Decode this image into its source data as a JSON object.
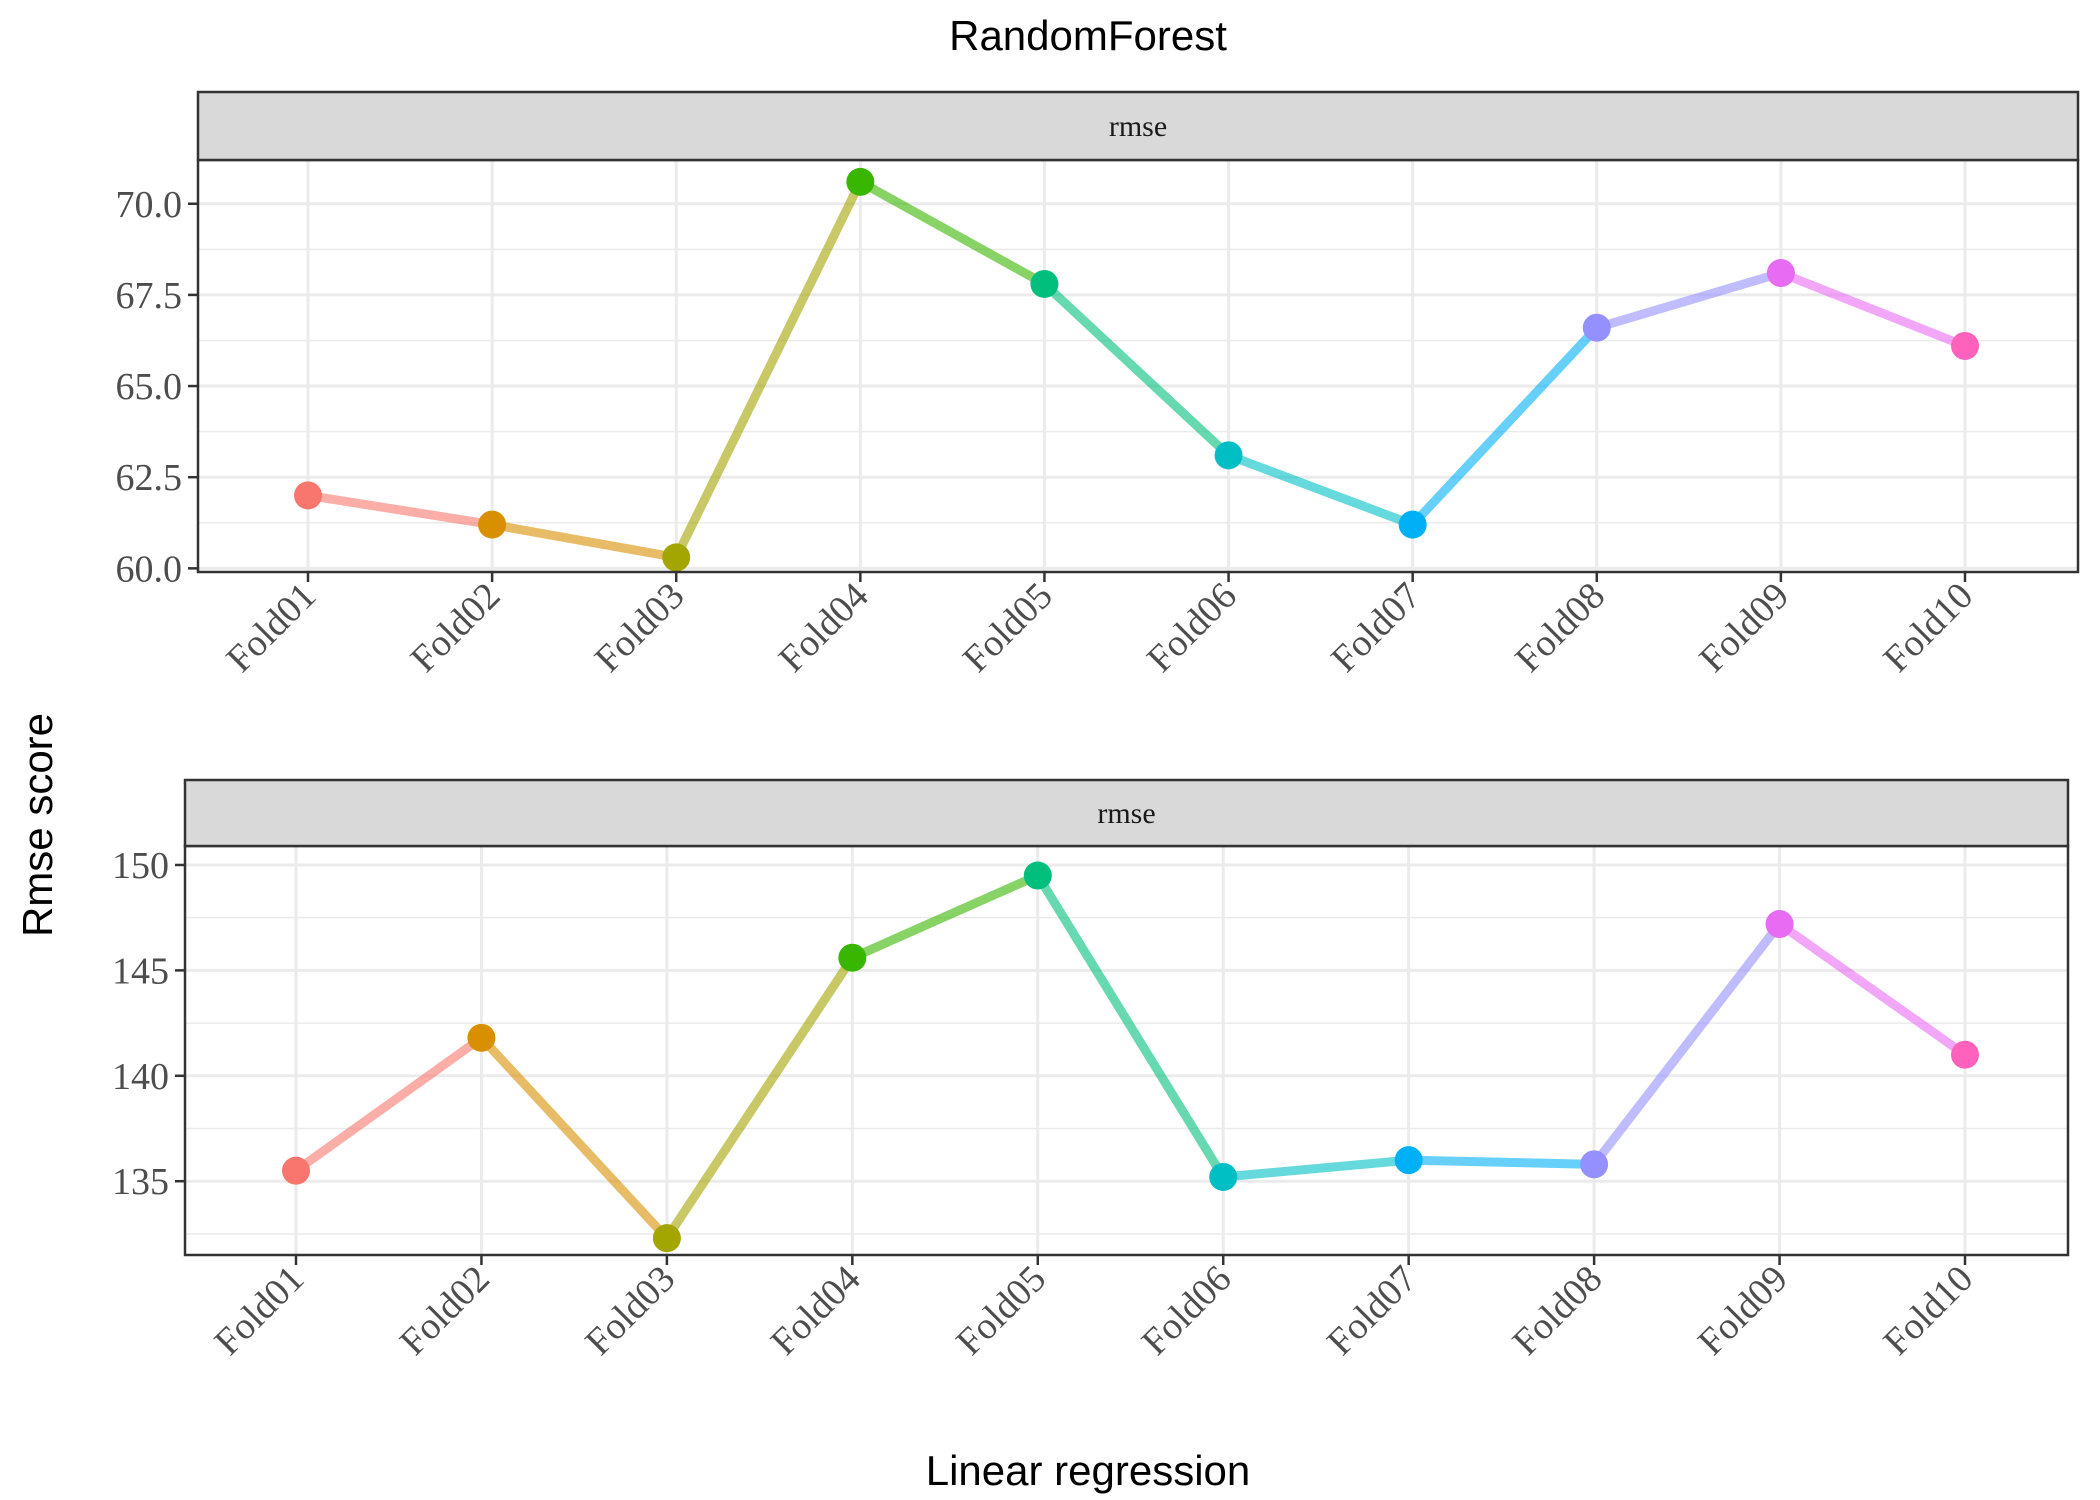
{
  "chart_data": {
    "title": "RandomForest",
    "xlabel": "Linear regression",
    "ylabel": "Rmse score",
    "categories": [
      "Fold01",
      "Fold02",
      "Fold03",
      "Fold04",
      "Fold05",
      "Fold06",
      "Fold07",
      "Fold08",
      "Fold09",
      "Fold10"
    ],
    "category_colors": [
      "#F8766D",
      "#D89000",
      "#A3A500",
      "#39B600",
      "#00BF7D",
      "#00BFC4",
      "#00B0F6",
      "#9590FF",
      "#E76BF3",
      "#FF62BC"
    ],
    "panels": [
      {
        "type": "line",
        "strip": "rmse",
        "values": [
          62.0,
          61.2,
          60.3,
          70.6,
          67.8,
          63.1,
          61.2,
          66.6,
          68.1,
          66.1
        ],
        "ylim": [
          59.9,
          71.2
        ],
        "yticks": [
          "60.0",
          "62.5",
          "65.0",
          "67.5",
          "70.0"
        ],
        "grid": true
      },
      {
        "type": "line",
        "strip": "rmse",
        "values": [
          135.5,
          141.8,
          132.3,
          145.6,
          149.5,
          135.2,
          136.0,
          135.8,
          147.2,
          141.0
        ],
        "ylim": [
          131.5,
          150.9
        ],
        "yticks": [
          "135",
          "140",
          "145",
          "150"
        ],
        "grid": true
      }
    ]
  }
}
